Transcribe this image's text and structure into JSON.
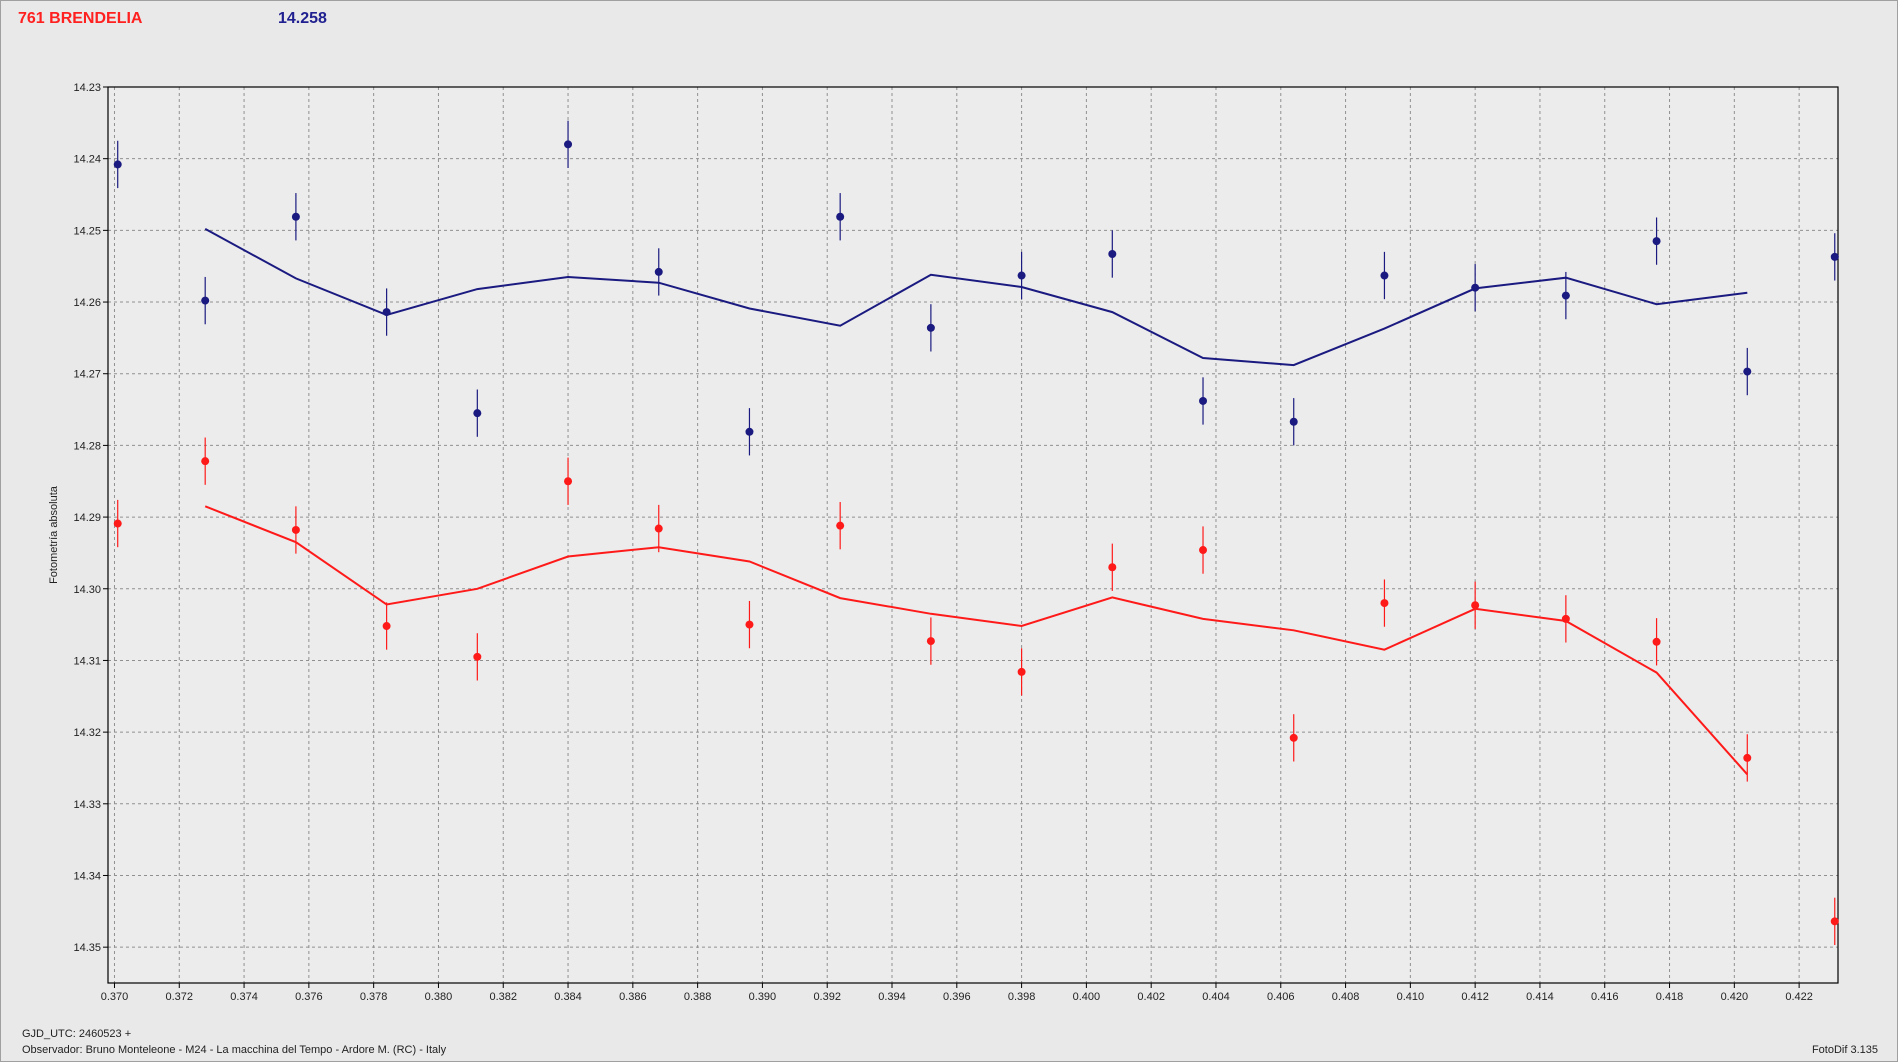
{
  "header": {
    "object_name": "761 BRENDELIA",
    "mean_value": "14.258"
  },
  "footer": {
    "gjd": "GJD_UTC: 2460523 +",
    "observer": "Observador: Bruno Monteleone - M24 - La macchina del Tempo - Ardore M. (RC) - Italy",
    "software": "FotoDif 3.135"
  },
  "colors": {
    "series_blue": "#1a1a80",
    "series_red": "#ff1a1a",
    "grid": "#909090"
  },
  "chart_data": {
    "type": "line",
    "ylabel": "Fotometría absoluta",
    "xlabel": "",
    "xlim": [
      0.3698,
      0.4232
    ],
    "ylim": [
      14.23,
      14.355
    ],
    "y_inverted": true,
    "grid": true,
    "x_ticks": [
      "0.370",
      "0.372",
      "0.374",
      "0.376",
      "0.378",
      "0.380",
      "0.382",
      "0.384",
      "0.386",
      "0.388",
      "0.390",
      "0.392",
      "0.394",
      "0.396",
      "0.398",
      "0.400",
      "0.402",
      "0.404",
      "0.406",
      "0.408",
      "0.410",
      "0.412",
      "0.414",
      "0.416",
      "0.418",
      "0.420",
      "0.422"
    ],
    "y_ticks": [
      "14.23",
      "14.24",
      "14.25",
      "14.26",
      "14.27",
      "14.28",
      "14.29",
      "14.30",
      "14.31",
      "14.32",
      "14.33",
      "14.34",
      "14.35"
    ],
    "series": [
      {
        "color": "#1a1a80",
        "points": [
          {
            "x": 0.3701,
            "y": 14.2408,
            "err": 0.0033
          },
          {
            "x": 0.3728,
            "y": 14.2598,
            "err": 0.0033
          },
          {
            "x": 0.3756,
            "y": 14.2481,
            "err": 0.0033
          },
          {
            "x": 0.3784,
            "y": 14.2614,
            "err": 0.0033
          },
          {
            "x": 0.3812,
            "y": 14.2755,
            "err": 0.0033
          },
          {
            "x": 0.384,
            "y": 14.238,
            "err": 0.0033
          },
          {
            "x": 0.3868,
            "y": 14.2558,
            "err": 0.0033
          },
          {
            "x": 0.3896,
            "y": 14.2781,
            "err": 0.0033
          },
          {
            "x": 0.3924,
            "y": 14.2481,
            "err": 0.0033
          },
          {
            "x": 0.3952,
            "y": 14.2636,
            "err": 0.0033
          },
          {
            "x": 0.398,
            "y": 14.2563,
            "err": 0.0033
          },
          {
            "x": 0.4008,
            "y": 14.2533,
            "err": 0.0033
          },
          {
            "x": 0.4036,
            "y": 14.2738,
            "err": 0.0033
          },
          {
            "x": 0.4064,
            "y": 14.2767,
            "err": 0.0033
          },
          {
            "x": 0.4092,
            "y": 14.2563,
            "err": 0.0033
          },
          {
            "x": 0.412,
            "y": 14.258,
            "err": 0.0033
          },
          {
            "x": 0.4148,
            "y": 14.2591,
            "err": 0.0033
          },
          {
            "x": 0.4176,
            "y": 14.2515,
            "err": 0.0033
          },
          {
            "x": 0.4204,
            "y": 14.2697,
            "err": 0.0033
          },
          {
            "x": 0.4231,
            "y": 14.2537,
            "err": 0.0033
          }
        ],
        "fit": [
          {
            "x": 0.3728,
            "y": 14.2498
          },
          {
            "x": 0.3756,
            "y": 14.2567
          },
          {
            "x": 0.3784,
            "y": 14.2618
          },
          {
            "x": 0.3812,
            "y": 14.2582
          },
          {
            "x": 0.384,
            "y": 14.2565
          },
          {
            "x": 0.3868,
            "y": 14.2573
          },
          {
            "x": 0.3896,
            "y": 14.2609
          },
          {
            "x": 0.3924,
            "y": 14.2633
          },
          {
            "x": 0.3952,
            "y": 14.2562
          },
          {
            "x": 0.398,
            "y": 14.2579
          },
          {
            "x": 0.4008,
            "y": 14.2614
          },
          {
            "x": 0.4036,
            "y": 14.2678
          },
          {
            "x": 0.4064,
            "y": 14.2688
          },
          {
            "x": 0.4092,
            "y": 14.2637
          },
          {
            "x": 0.412,
            "y": 14.2581
          },
          {
            "x": 0.4148,
            "y": 14.2566
          },
          {
            "x": 0.4176,
            "y": 14.2603
          },
          {
            "x": 0.4204,
            "y": 14.2587
          }
        ]
      },
      {
        "color": "#ff1a1a",
        "points": [
          {
            "x": 0.3701,
            "y": 14.2909,
            "err": 0.0033
          },
          {
            "x": 0.3728,
            "y": 14.2822,
            "err": 0.0033
          },
          {
            "x": 0.3756,
            "y": 14.2918,
            "err": 0.0033
          },
          {
            "x": 0.3784,
            "y": 14.3052,
            "err": 0.0033
          },
          {
            "x": 0.3812,
            "y": 14.3095,
            "err": 0.0033
          },
          {
            "x": 0.384,
            "y": 14.285,
            "err": 0.0033
          },
          {
            "x": 0.3868,
            "y": 14.2916,
            "err": 0.0033
          },
          {
            "x": 0.3896,
            "y": 14.305,
            "err": 0.0033
          },
          {
            "x": 0.3924,
            "y": 14.2912,
            "err": 0.0033
          },
          {
            "x": 0.3952,
            "y": 14.3073,
            "err": 0.0033
          },
          {
            "x": 0.398,
            "y": 14.3116,
            "err": 0.0033
          },
          {
            "x": 0.4008,
            "y": 14.297,
            "err": 0.0033
          },
          {
            "x": 0.4036,
            "y": 14.2946,
            "err": 0.0033
          },
          {
            "x": 0.4064,
            "y": 14.3208,
            "err": 0.0033
          },
          {
            "x": 0.4092,
            "y": 14.302,
            "err": 0.0033
          },
          {
            "x": 0.412,
            "y": 14.3023,
            "err": 0.0033
          },
          {
            "x": 0.4148,
            "y": 14.3042,
            "err": 0.0033
          },
          {
            "x": 0.4176,
            "y": 14.3074,
            "err": 0.0033
          },
          {
            "x": 0.4204,
            "y": 14.3236,
            "err": 0.0033
          },
          {
            "x": 0.4231,
            "y": 14.3464,
            "err": 0.0033
          }
        ],
        "fit": [
          {
            "x": 0.3728,
            "y": 14.2885
          },
          {
            "x": 0.3756,
            "y": 14.2935
          },
          {
            "x": 0.3784,
            "y": 14.3022
          },
          {
            "x": 0.3812,
            "y": 14.3
          },
          {
            "x": 0.384,
            "y": 14.2955
          },
          {
            "x": 0.3868,
            "y": 14.2942
          },
          {
            "x": 0.3896,
            "y": 14.2962
          },
          {
            "x": 0.3924,
            "y": 14.3013
          },
          {
            "x": 0.3952,
            "y": 14.3035
          },
          {
            "x": 0.398,
            "y": 14.3052
          },
          {
            "x": 0.4008,
            "y": 14.3012
          },
          {
            "x": 0.4036,
            "y": 14.3042
          },
          {
            "x": 0.4064,
            "y": 14.3058
          },
          {
            "x": 0.4092,
            "y": 14.3085
          },
          {
            "x": 0.412,
            "y": 14.3028
          },
          {
            "x": 0.4148,
            "y": 14.3045
          },
          {
            "x": 0.4176,
            "y": 14.3117
          },
          {
            "x": 0.4204,
            "y": 14.3259
          }
        ]
      }
    ]
  }
}
